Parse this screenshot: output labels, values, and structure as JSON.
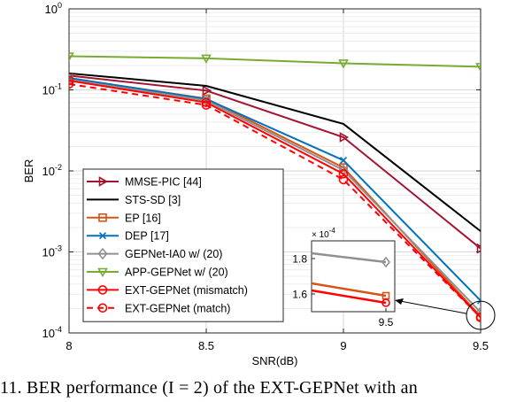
{
  "chart_data": {
    "type": "line",
    "xlabel": "SNR(dB)",
    "ylabel": "BER",
    "yscale": "log",
    "xlim": [
      8,
      9.5
    ],
    "ylim": [
      0.0001,
      1
    ],
    "grid": true,
    "legend_position": "bottom-left",
    "x_ticks": [
      "8",
      "8.5",
      "9",
      "9.5"
    ],
    "y_ticks": [
      {
        "base": "10",
        "exp": "-4",
        "value": 0.0001
      },
      {
        "base": "10",
        "exp": "-3",
        "value": 0.001
      },
      {
        "base": "10",
        "exp": "-2",
        "value": 0.01
      },
      {
        "base": "10",
        "exp": "-1",
        "value": 0.1
      },
      {
        "base": "10",
        "exp": "0",
        "value": 1
      }
    ],
    "x": [
      8,
      8.5,
      9,
      9.5
    ],
    "series": [
      {
        "name": "MMSE-PIC [44]",
        "color": "#a2142f",
        "marker": "triangle-right",
        "dash": "solid",
        "values": [
          0.15,
          0.098,
          0.026,
          0.0011
        ]
      },
      {
        "name": "STS-SD [3]",
        "color": "#000000",
        "marker": "none",
        "dash": "solid",
        "values": [
          0.16,
          0.112,
          0.038,
          0.0018
        ]
      },
      {
        "name": "EP [16]",
        "color": "#d95319",
        "marker": "square",
        "dash": "solid",
        "values": [
          0.14,
          0.078,
          0.011,
          0.00016
        ]
      },
      {
        "name": "DEP [17]",
        "color": "#0072bd",
        "marker": "x",
        "dash": "solid",
        "values": [
          0.14,
          0.077,
          0.0135,
          0.00025
        ]
      },
      {
        "name": "GEPNet-IA0 w/ (20)",
        "color": "#909090",
        "marker": "diamond",
        "dash": "solid",
        "values": [
          0.133,
          0.074,
          0.0102,
          0.00018
        ]
      },
      {
        "name": "APP-GEPNet w/ (20)",
        "color": "#77ac30",
        "marker": "triangle-down",
        "dash": "solid",
        "values": [
          0.26,
          0.245,
          0.213,
          0.193
        ]
      },
      {
        "name": "EXT-GEPNet (mismatch)",
        "color": "#ff0000",
        "marker": "circle",
        "dash": "solid",
        "values": [
          0.13,
          0.07,
          0.0092,
          0.000155
        ]
      },
      {
        "name": "EXT-GEPNet (match)",
        "color": "#ff0000",
        "marker": "circle",
        "dash": "dashed",
        "values": [
          0.118,
          0.065,
          0.0078,
          0.000155
        ]
      }
    ],
    "inset": {
      "exponent_label": "× 10",
      "exponent": "-4",
      "x_tick": "9.5",
      "y_ticks": [
        "1.6",
        "1.8"
      ],
      "ylim": [
        1.5,
        1.9
      ],
      "series": [
        {
          "name": "GEPNet-IA0 w/ (20)",
          "color": "#909090",
          "marker": "diamond",
          "values": [
            1.83,
            1.78
          ]
        },
        {
          "name": "EP [16]",
          "color": "#d95319",
          "marker": "square",
          "values": [
            1.66,
            1.59
          ]
        },
        {
          "name": "EXT-GEPNet (mismatch)",
          "color": "#ff0000",
          "marker": "circle",
          "values": [
            1.62,
            1.55
          ]
        }
      ]
    }
  },
  "caption": "11.    BER performance  (I  =  2)  of the EXT-GEPNet with an"
}
